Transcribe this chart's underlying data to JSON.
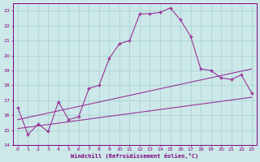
{
  "xlabel": "Windchill (Refroidissement éolien,°C)",
  "bg_color": "#cce8e8",
  "grid_color": "#aad4d4",
  "line_color": "#993399",
  "xlim": [
    -0.5,
    23.5
  ],
  "ylim": [
    14,
    23.5
  ],
  "xticks": [
    0,
    1,
    2,
    3,
    4,
    5,
    6,
    7,
    8,
    9,
    10,
    11,
    12,
    13,
    14,
    15,
    16,
    17,
    18,
    19,
    20,
    21,
    22,
    23
  ],
  "yticks": [
    14,
    15,
    16,
    17,
    18,
    19,
    20,
    21,
    22,
    23
  ],
  "series1_x": [
    0,
    1,
    2,
    3,
    4,
    5,
    6,
    7,
    8,
    9,
    10,
    11,
    12,
    13,
    14,
    15,
    16,
    17,
    18,
    19,
    20,
    21,
    22,
    23
  ],
  "series1_y": [
    16.5,
    14.7,
    15.4,
    14.9,
    16.9,
    15.7,
    15.9,
    17.8,
    18.0,
    19.8,
    20.8,
    21.0,
    22.8,
    22.8,
    22.9,
    23.2,
    22.4,
    21.3,
    19.1,
    19.0,
    18.5,
    18.4,
    18.7,
    17.5
  ],
  "series2_x": [
    0,
    23
  ],
  "series2_y": [
    15.1,
    17.2
  ],
  "series3_x": [
    0,
    23
  ],
  "series3_y": [
    15.7,
    19.1
  ],
  "xlabel_color": "#800080",
  "tick_color": "#800080",
  "axis_color": "#800080"
}
